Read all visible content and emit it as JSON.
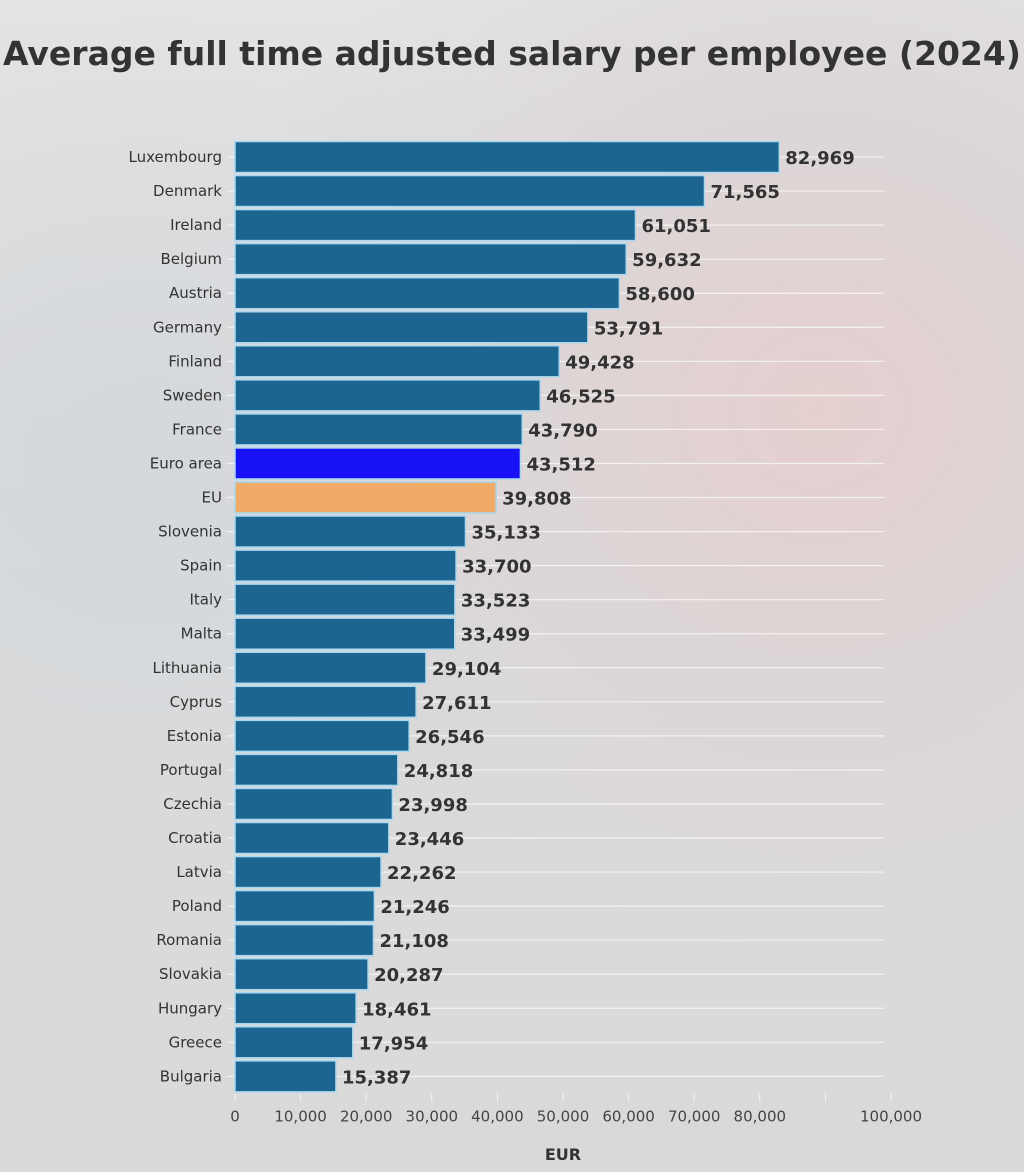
{
  "chart_data": {
    "type": "bar",
    "orientation": "horizontal",
    "title": "Average full time adjusted salary per employee (2024)",
    "xlabel": "EUR",
    "ylabel": "",
    "xlim": [
      0,
      100000
    ],
    "x_tick_labels": [
      "0",
      "10,000",
      "20,000",
      "30,000",
      "40,000",
      "50,000",
      "60,000",
      "70,000",
      "80,000",
      "",
      "100,000"
    ],
    "grid": "horizontal row lines",
    "categories": [
      "Luxembourg",
      "Denmark",
      "Ireland",
      "Belgium",
      "Austria",
      "Germany",
      "Finland",
      "Sweden",
      "France",
      "Euro area",
      "EU",
      "Slovenia",
      "Spain",
      "Italy",
      "Malta",
      "Lithuania",
      "Cyprus",
      "Estonia",
      "Portugal",
      "Czechia",
      "Croatia",
      "Latvia",
      "Poland",
      "Romania",
      "Slovakia",
      "Hungary",
      "Greece",
      "Bulgaria"
    ],
    "values": [
      82969,
      71565,
      61051,
      59632,
      58600,
      53791,
      49428,
      46525,
      43790,
      43512,
      39808,
      35133,
      33700,
      33523,
      33499,
      29104,
      27611,
      26546,
      24818,
      23998,
      23446,
      22262,
      21246,
      21108,
      20287,
      18461,
      17954,
      15387
    ],
    "value_labels": [
      "82,969",
      "71,565",
      "61,051",
      "59,632",
      "58,600",
      "53,791",
      "49,428",
      "46,525",
      "43,790",
      "43,512",
      "39,808",
      "35,133",
      "33,700",
      "33,523",
      "33,499",
      "29,104",
      "27,611",
      "26,546",
      "24,818",
      "23,998",
      "23,446",
      "22,262",
      "21,246",
      "21,108",
      "20,287",
      "18,461",
      "17,954",
      "15,387"
    ],
    "colors": {
      "default": "#1c6591",
      "Euro area": "#1a12f7",
      "EU": "#f0ab68",
      "bar_outline": "#a9d8f0"
    }
  }
}
